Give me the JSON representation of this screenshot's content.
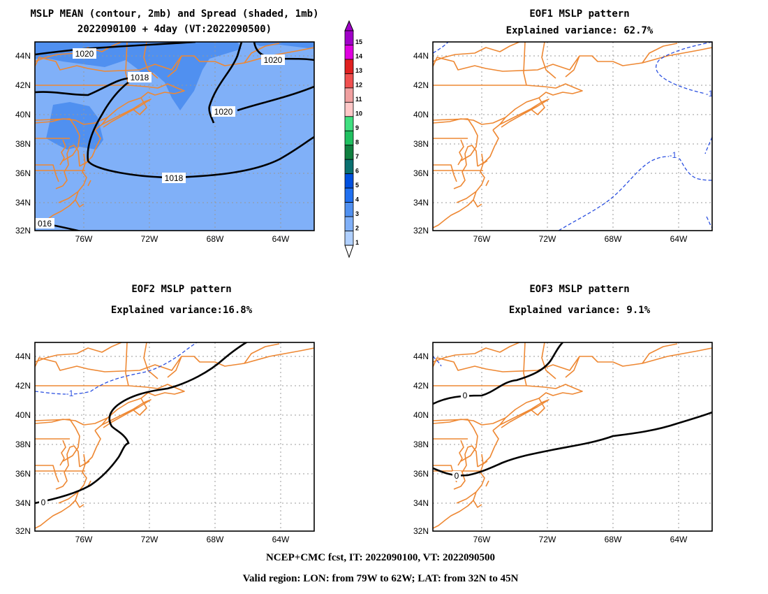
{
  "panels": {
    "mean": {
      "title1": "MSLP MEAN (contour, 2mb) and Spread (shaded, 1mb)",
      "title2": "2022090100 + 4day (VT:2022090500)",
      "contour_labels": [
        "1020",
        "1018",
        "1020",
        "1020",
        "1018",
        "016"
      ]
    },
    "eof1": {
      "title1": "EOF1 MSLP pattern",
      "title2": "Explained variance: 62.7%",
      "contour_labels": [
        "-1",
        "-1"
      ]
    },
    "eof2": {
      "title1": "EOF2 MSLP pattern",
      "title2": "Explained variance:16.8%",
      "contour_labels": [
        "0",
        "-1"
      ]
    },
    "eof3": {
      "title1": "EOF3 MSLP pattern",
      "title2": "Explained variance: 9.1%",
      "contour_labels": [
        "0",
        "0"
      ]
    }
  },
  "axes": {
    "lat_labels": [
      "44N",
      "42N",
      "40N",
      "38N",
      "36N",
      "34N",
      "32N"
    ],
    "lon_labels": [
      "76W",
      "72W",
      "68W",
      "64W"
    ]
  },
  "colorbar": {
    "labels": [
      "15",
      "14",
      "13",
      "12",
      "11",
      "10",
      "9",
      "8",
      "7",
      "6",
      "5",
      "4",
      "3",
      "2",
      "1"
    ],
    "colors": [
      "#a000c8",
      "#e000e0",
      "#e02020",
      "#f05050",
      "#f0a0a0",
      "#ffc8c8",
      "#40e080",
      "#20c060",
      "#108040",
      "#0a7070",
      "#0050e0",
      "#2070f0",
      "#5090f0",
      "#80b0f8",
      "#b0d0ff"
    ]
  },
  "footer": {
    "line1": "NCEP+CMC fcst, IT: 2022090100, VT: 2022090500",
    "line2": "Valid region: LON: from 79W to 62W; LAT: from 32N to 45N"
  }
}
